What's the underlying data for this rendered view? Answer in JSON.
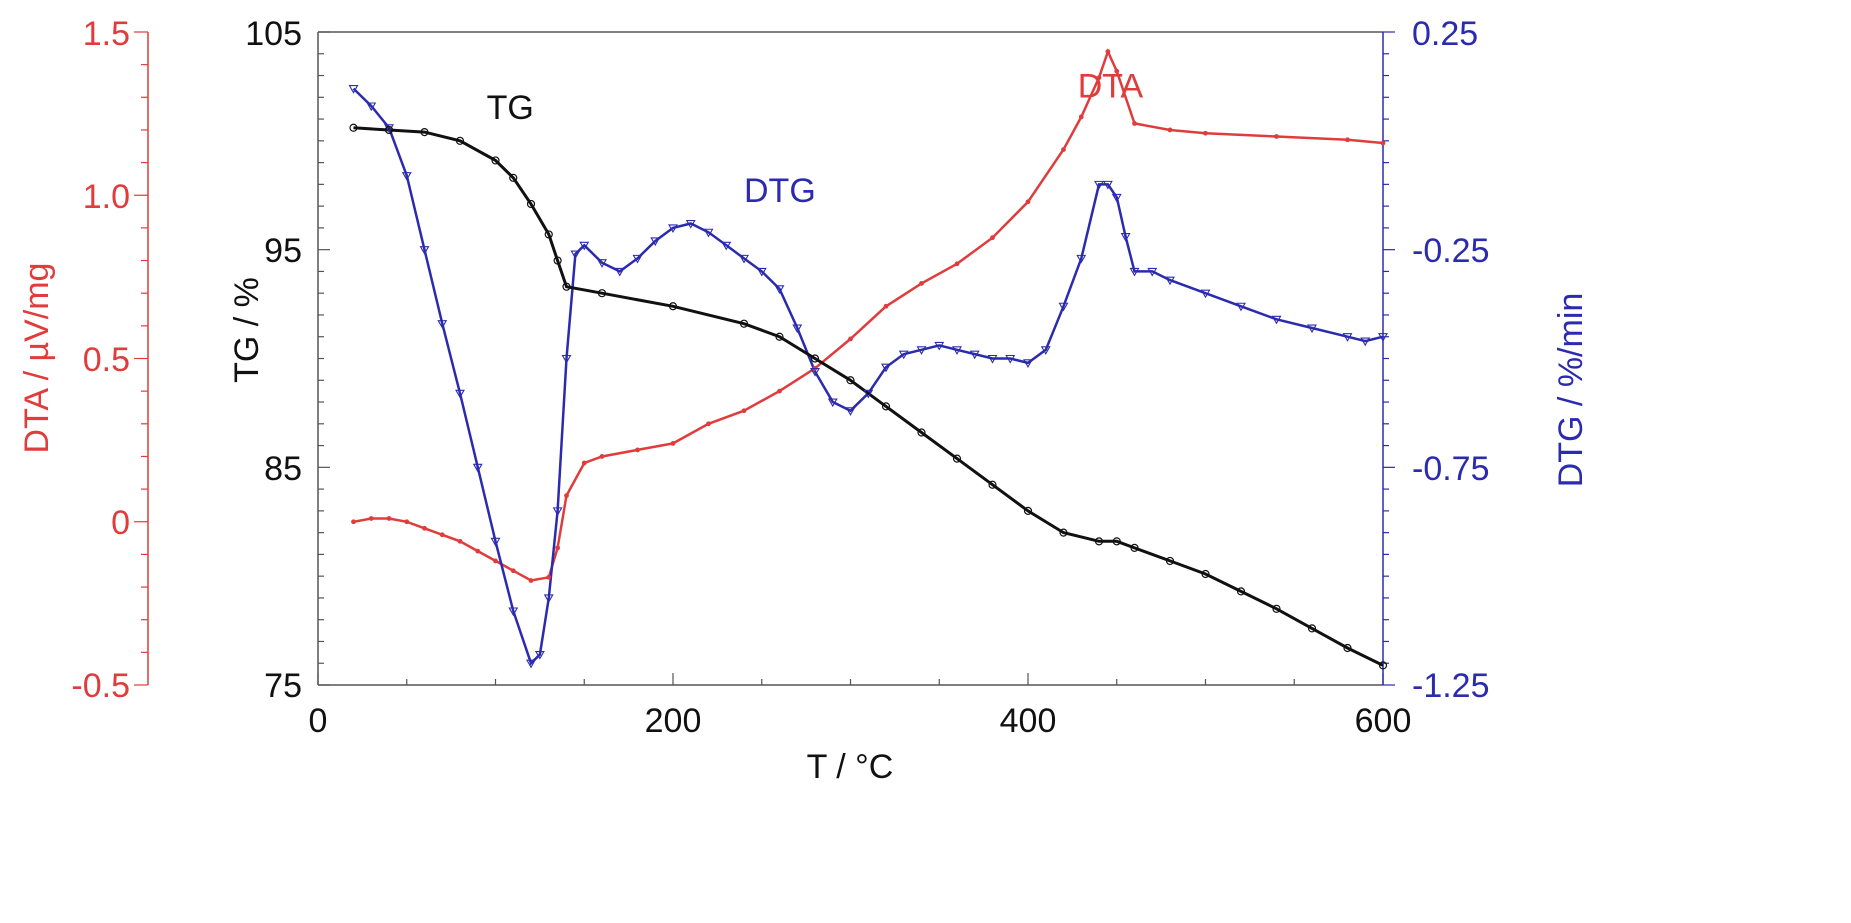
{
  "chart_data": {
    "type": "line",
    "x_axis": {
      "label": "T / °C",
      "range": [
        0,
        600
      ],
      "ticks": [
        0,
        200,
        400,
        600
      ],
      "tick_labels": [
        "0",
        "200",
        "400",
        "600"
      ],
      "minor_step": 50
    },
    "y_axes": {
      "dta": {
        "label": "DTA / µV/mg",
        "color": "#e03c3c",
        "range": [
          -0.5,
          1.5
        ],
        "ticks": [
          -0.5,
          0,
          0.5,
          1.0,
          1.5
        ],
        "tick_labels": [
          "-0.5",
          "0",
          "0.5",
          "1.0",
          "1.5"
        ],
        "minor_step": 0.1
      },
      "tg": {
        "label": "TG / %",
        "color": "#111111",
        "range": [
          75,
          105
        ],
        "ticks": [
          75,
          85,
          95,
          105
        ],
        "tick_labels": [
          "75",
          "85",
          "95",
          "105"
        ],
        "minor_step": 1
      },
      "dtg": {
        "label": "DTG / %/min",
        "color": "#2b2bb0",
        "range": [
          -1.25,
          0.25
        ],
        "ticks": [
          -1.25,
          -0.75,
          -0.25,
          0.25
        ],
        "tick_labels": [
          "-1.25",
          "-0.75",
          "-0.25",
          "0.25"
        ],
        "minor_step": 0.05
      }
    },
    "series": [
      {
        "name": "TG",
        "axis": "tg",
        "color": "#111111",
        "x": [
          20,
          40,
          60,
          80,
          100,
          110,
          120,
          130,
          135,
          140,
          160,
          200,
          240,
          260,
          280,
          300,
          320,
          340,
          360,
          380,
          400,
          420,
          440,
          450,
          460,
          480,
          500,
          520,
          540,
          560,
          580,
          600
        ],
        "y": [
          100.6,
          100.5,
          100.4,
          100.0,
          99.1,
          98.3,
          97.1,
          95.7,
          94.5,
          93.3,
          93.0,
          92.4,
          91.6,
          91.0,
          90.0,
          89.0,
          87.8,
          86.6,
          85.4,
          84.2,
          83.0,
          82.0,
          81.6,
          81.6,
          81.3,
          80.7,
          80.1,
          79.3,
          78.5,
          77.6,
          76.7,
          75.9
        ]
      },
      {
        "name": "DTG",
        "axis": "dtg",
        "color": "#2b2bb0",
        "x": [
          20,
          30,
          40,
          50,
          60,
          70,
          80,
          90,
          100,
          110,
          120,
          125,
          130,
          135,
          140,
          145,
          150,
          160,
          170,
          180,
          190,
          200,
          210,
          220,
          230,
          240,
          250,
          260,
          270,
          280,
          290,
          300,
          310,
          320,
          330,
          340,
          350,
          360,
          370,
          380,
          390,
          400,
          410,
          420,
          430,
          440,
          445,
          450,
          455,
          460,
          470,
          480,
          500,
          520,
          540,
          560,
          580,
          590,
          600
        ],
        "y": [
          0.12,
          0.08,
          0.03,
          -0.08,
          -0.25,
          -0.42,
          -0.58,
          -0.75,
          -0.92,
          -1.08,
          -1.2,
          -1.18,
          -1.05,
          -0.85,
          -0.5,
          -0.26,
          -0.24,
          -0.28,
          -0.3,
          -0.27,
          -0.23,
          -0.2,
          -0.19,
          -0.21,
          -0.24,
          -0.27,
          -0.3,
          -0.34,
          -0.43,
          -0.53,
          -0.6,
          -0.62,
          -0.58,
          -0.52,
          -0.49,
          -0.48,
          -0.47,
          -0.48,
          -0.49,
          -0.5,
          -0.5,
          -0.51,
          -0.48,
          -0.38,
          -0.27,
          -0.1,
          -0.1,
          -0.13,
          -0.22,
          -0.3,
          -0.3,
          -0.32,
          -0.35,
          -0.38,
          -0.41,
          -0.43,
          -0.45,
          -0.46,
          -0.45
        ]
      },
      {
        "name": "DTA",
        "axis": "dta",
        "color": "#e03c3c",
        "x": [
          20,
          30,
          40,
          50,
          60,
          70,
          80,
          90,
          100,
          110,
          120,
          130,
          135,
          140,
          150,
          160,
          180,
          200,
          220,
          240,
          260,
          280,
          300,
          320,
          340,
          360,
          380,
          400,
          420,
          430,
          440,
          445,
          450,
          460,
          480,
          500,
          540,
          580,
          600
        ],
        "y": [
          0.0,
          0.01,
          0.01,
          0.0,
          -0.02,
          -0.04,
          -0.06,
          -0.09,
          -0.12,
          -0.15,
          -0.18,
          -0.17,
          -0.08,
          0.08,
          0.18,
          0.2,
          0.22,
          0.24,
          0.3,
          0.34,
          0.4,
          0.47,
          0.56,
          0.66,
          0.73,
          0.79,
          0.87,
          0.98,
          1.14,
          1.24,
          1.36,
          1.44,
          1.38,
          1.22,
          1.2,
          1.19,
          1.18,
          1.17,
          1.16
        ]
      }
    ],
    "annotations": [
      {
        "text": "TG",
        "x": 95,
        "axis": "tg",
        "y": 101.0,
        "color": "#111111"
      },
      {
        "text": "DTG",
        "x": 240,
        "axis": "dtg",
        "y": -0.14,
        "color": "#2b2bb0"
      },
      {
        "text": "DTA",
        "x": 428,
        "axis": "dta",
        "y": 1.3,
        "color": "#e03c3c"
      }
    ]
  }
}
